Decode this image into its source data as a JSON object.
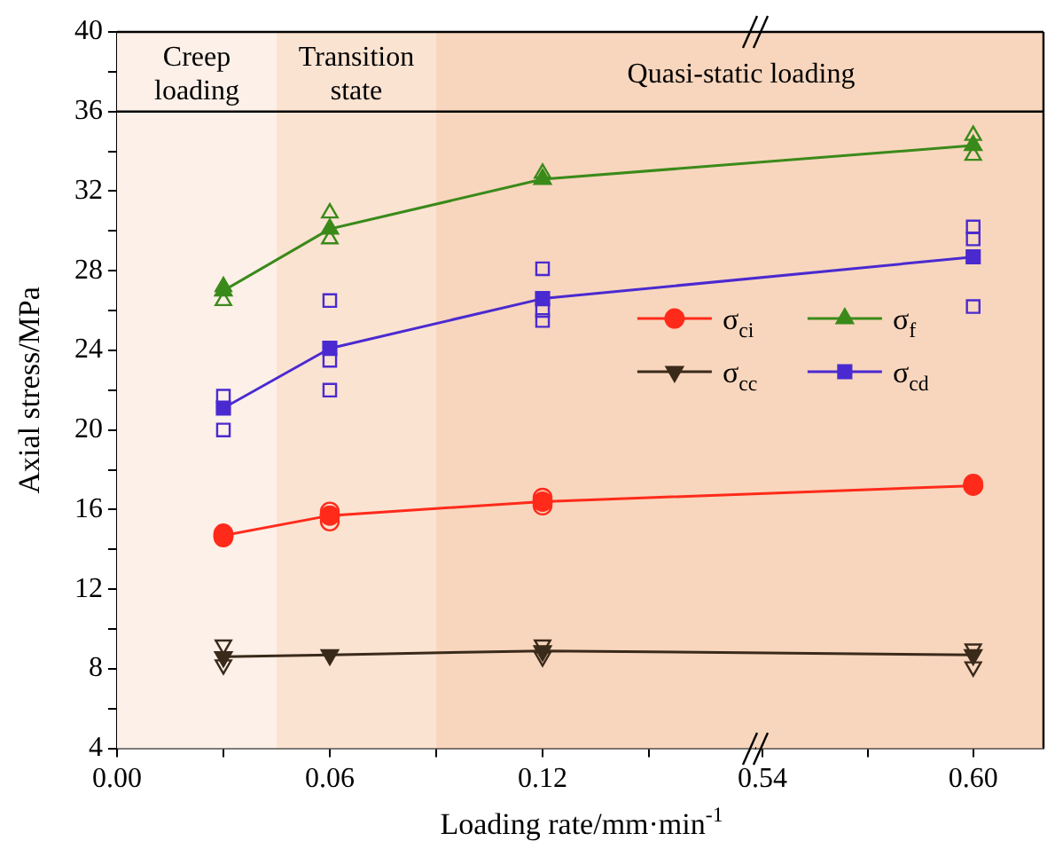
{
  "chart_data": [
    {
      "type": "line",
      "xlabel": "Loading rate/mm·min$^{-1}$",
      "ylabel": "Axial stress/MPa",
      "x": [
        0.03,
        0.06,
        0.12
      ],
      "series": [
        {
          "name": "σ$_{ci}$",
          "color": "#ff2a1a",
          "marker": "circle",
          "values": [
            14.7,
            15.7,
            16.4
          ]
        },
        {
          "name": "σ$_{f}$",
          "color": "#3a8a1a",
          "marker": "triangle",
          "values": [
            27.0,
            30.1,
            32.6
          ]
        },
        {
          "name": "σ$_{cc}$",
          "color": "#3a2a1a",
          "marker": "triangle-down",
          "values": [
            8.6,
            8.7,
            8.9
          ]
        },
        {
          "name": "σ$_{cd}$",
          "color": "#4a2ad0",
          "marker": "square",
          "values": [
            21.1,
            24.1,
            26.6
          ]
        },
        {
          "type": "scatter",
          "color": "#ff2a1a",
          "marker": "circle",
          "x": [
            0.03,
            0.03,
            0.06,
            0.06,
            0.12,
            0.12
          ],
          "values": [
            14.6,
            14.8,
            15.9,
            15.4,
            16.6,
            16.2
          ]
        },
        {
          "type": "scatter",
          "color": "#3a8a1a",
          "marker": "triangle",
          "x": [
            0.03,
            0.03,
            0.06,
            0.06,
            0.12
          ],
          "values": [
            26.5,
            27.2,
            30.9,
            29.6,
            32.9
          ]
        },
        {
          "type": "scatter",
          "color": "#3a2a1a",
          "marker": "triangle-down",
          "x": [
            0.03,
            0.03,
            0.12,
            0.12
          ],
          "values": [
            9.2,
            8.2,
            9.2,
            8.6
          ]
        },
        {
          "type": "scatter",
          "color": "#4a2ad0",
          "marker": "square",
          "x": [
            0.03,
            0.03,
            0.06,
            0.06,
            0.06,
            0.12,
            0.12,
            0.12
          ],
          "values": [
            21.7,
            20.0,
            26.5,
            23.5,
            22.0,
            28.1,
            26.0,
            25.5
          ]
        }
      ],
      "xlim": [
        0,
        0.18
      ],
      "xticks": [
        {
          "value": 0,
          "label": "0.00"
        },
        {
          "value": 0.03,
          "label": null
        },
        0.06,
        {
          "value": 0.09,
          "label": null
        },
        0.12,
        {
          "value": 0.15,
          "label": null
        }
      ],
      "ylim": [
        4,
        40
      ],
      "yticks": [
        4,
        {
          "value": 6,
          "label": null
        },
        8,
        {
          "value": 10,
          "label": null
        },
        12,
        {
          "value": 14,
          "label": null
        },
        16,
        {
          "value": 18,
          "label": null
        },
        20,
        {
          "value": 22,
          "label": null
        },
        24,
        {
          "value": 26,
          "label": null
        },
        28,
        {
          "value": 30,
          "label": null
        },
        32,
        {
          "value": 34,
          "label": null
        },
        36,
        {
          "value": 38,
          "label": null
        },
        40
      ],
      "bands": [
        {
          "axis": "x",
          "from": 0,
          "to": 0.045,
          "label": "Creep\nloading",
          "color": "#fcf0e8"
        },
        {
          "axis": "x",
          "from": 0.045,
          "to": 0.09,
          "label": "Transition\nstate",
          "color": "#fbe3d2"
        },
        {
          "axis": "x",
          "from": 0.09,
          "to": 0.18,
          "label": "Quasi-static loading",
          "color": "#f8d6bd"
        }
      ],
      "ref_lines": [
        {
          "axis": "y",
          "value": 36,
          "color": "#000000"
        }
      ],
      "grid": false,
      "legend": "right",
      "line_style": "solid"
    },
    {
      "type": "line",
      "x": [
        0.6
      ],
      "series": [
        {
          "color": "#ff2a1a",
          "marker": "circle",
          "values": [
            17.2
          ]
        },
        {
          "color": "#3a8a1a",
          "marker": "triangle",
          "values": [
            34.3
          ]
        },
        {
          "color": "#3a2a1a",
          "marker": "triangle-down",
          "values": [
            8.7
          ]
        },
        {
          "color": "#4a2ad0",
          "marker": "square",
          "values": [
            28.7
          ]
        },
        {
          "type": "scatter",
          "color": "#ff2a1a",
          "marker": "circle",
          "x": [
            0.6
          ],
          "values": [
            17.3
          ]
        },
        {
          "type": "scatter",
          "color": "#3a8a1a",
          "marker": "triangle",
          "x": [
            0.6,
            0.6
          ],
          "values": [
            34.8,
            33.8
          ]
        },
        {
          "type": "scatter",
          "color": "#3a2a1a",
          "marker": "triangle-down",
          "x": [
            0.6,
            0.6
          ],
          "values": [
            9.0,
            8.1
          ]
        },
        {
          "type": "scatter",
          "color": "#4a2ad0",
          "marker": "square",
          "x": [
            0.6,
            0.6,
            0.6
          ],
          "values": [
            30.2,
            29.6,
            26.2
          ]
        }
      ],
      "xlim": [
        0.538,
        0.62
      ],
      "xticks": [
        0.54,
        {
          "value": 0.57,
          "label": null
        },
        {
          "value": 0.6,
          "label": "0.60"
        }
      ],
      "ylim": [
        4,
        40
      ],
      "bands": [
        {
          "axis": "x",
          "from": 0.538,
          "to": 0.62,
          "color": "#f8d6bd"
        }
      ],
      "ref_lines": [
        {
          "axis": "y",
          "value": 36,
          "color": "#000000"
        }
      ],
      "grid": false,
      "tick_labels": "x",
      "line_style": "solid"
    }
  ]
}
